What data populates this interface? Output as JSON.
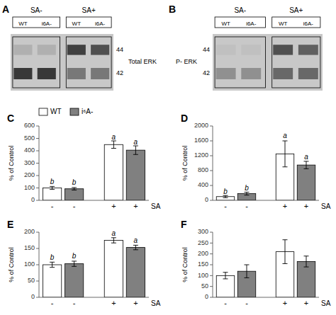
{
  "chart_data": [
    {
      "type": "blot",
      "title": "A",
      "annotations": [
        "SA-",
        "SA+",
        "WT",
        "i6A-",
        "44",
        "42",
        "Total ERK"
      ],
      "color": "#c8c8c8",
      "colors": [
        "#b0b0b0",
        "#b0b0b0",
        "#404040",
        "#505050",
        "#383838",
        "#383838",
        "#787878",
        "#787878"
      ]
    },
    {
      "type": "blot",
      "title": "B",
      "annotations": [
        "SA-",
        "SA+",
        "WT",
        "i6A-",
        "44",
        "42",
        "P- ERK"
      ],
      "color": "#c8c8c8",
      "colors": [
        "#c0c0c0",
        "#c0c0c0",
        "#505050",
        "#606060",
        "#909090",
        "#909090",
        "#686868",
        "#686868"
      ]
    },
    {
      "type": "bar",
      "title": "C",
      "xlabel": "SA",
      "ylabel": "% of Control",
      "categories": [
        "-",
        "-",
        "+",
        "+"
      ],
      "values": [
        100,
        93,
        450,
        405
      ],
      "errors": [
        12,
        10,
        30,
        35
      ],
      "colors": [
        "white",
        "#808080",
        "white",
        "#808080"
      ],
      "annotations": [
        {
          "text": "b",
          "y": 128
        },
        {
          "text": "b",
          "y": 118
        },
        {
          "text": "a",
          "y": 488
        },
        {
          "text": "a",
          "y": 443
        }
      ],
      "ylim": [
        0,
        600
      ],
      "yticks": [
        0,
        100,
        200,
        300,
        400,
        500,
        600
      ],
      "legend": "upper left",
      "legend_entries": [
        {
          "name": "WT",
          "color": "white"
        },
        {
          "name": "i⁶A-",
          "color": "#808080"
        }
      ]
    },
    {
      "type": "bar",
      "title": "D",
      "xlabel": "SA",
      "ylabel": "% of Control",
      "categories": [
        "-",
        "-",
        "+",
        "+"
      ],
      "values": [
        100,
        180,
        1250,
        950
      ],
      "errors": [
        30,
        40,
        350,
        100
      ],
      "colors": [
        "white",
        "#808080",
        "white",
        "#808080"
      ],
      "annotations": [
        {
          "text": "b",
          "y": 160
        },
        {
          "text": "b",
          "y": 250
        },
        {
          "text": "a",
          "y": 1650
        },
        {
          "text": "a",
          "y": 1080
        }
      ],
      "ylim": [
        0,
        2000
      ],
      "yticks": [
        0,
        400,
        800,
        1200,
        1600,
        2000
      ]
    },
    {
      "type": "bar",
      "title": "E",
      "xlabel": "SA",
      "ylabel": "% of Control",
      "categories": [
        "-",
        "-",
        "+",
        "+"
      ],
      "values": [
        100,
        103,
        175,
        153
      ],
      "errors": [
        8,
        8,
        8,
        7
      ],
      "colors": [
        "white",
        "#808080",
        "white",
        "#808080"
      ],
      "annotations": [
        {
          "text": "b",
          "y": 114
        },
        {
          "text": "b",
          "y": 117
        },
        {
          "text": "a",
          "y": 188
        },
        {
          "text": "a",
          "y": 165
        }
      ],
      "ylim": [
        0,
        200
      ],
      "yticks": [
        0,
        50,
        100,
        150,
        200
      ]
    },
    {
      "type": "bar",
      "title": "F",
      "xlabel": "SA",
      "ylabel": "% of Control",
      "categories": [
        "-",
        "-",
        "+",
        "+"
      ],
      "values": [
        100,
        120,
        210,
        165
      ],
      "errors": [
        15,
        30,
        55,
        25
      ],
      "colors": [
        "white",
        "#808080",
        "white",
        "#808080"
      ],
      "ylim": [
        0,
        300
      ],
      "yticks": [
        0,
        50,
        100,
        150,
        200,
        250,
        300
      ]
    }
  ]
}
